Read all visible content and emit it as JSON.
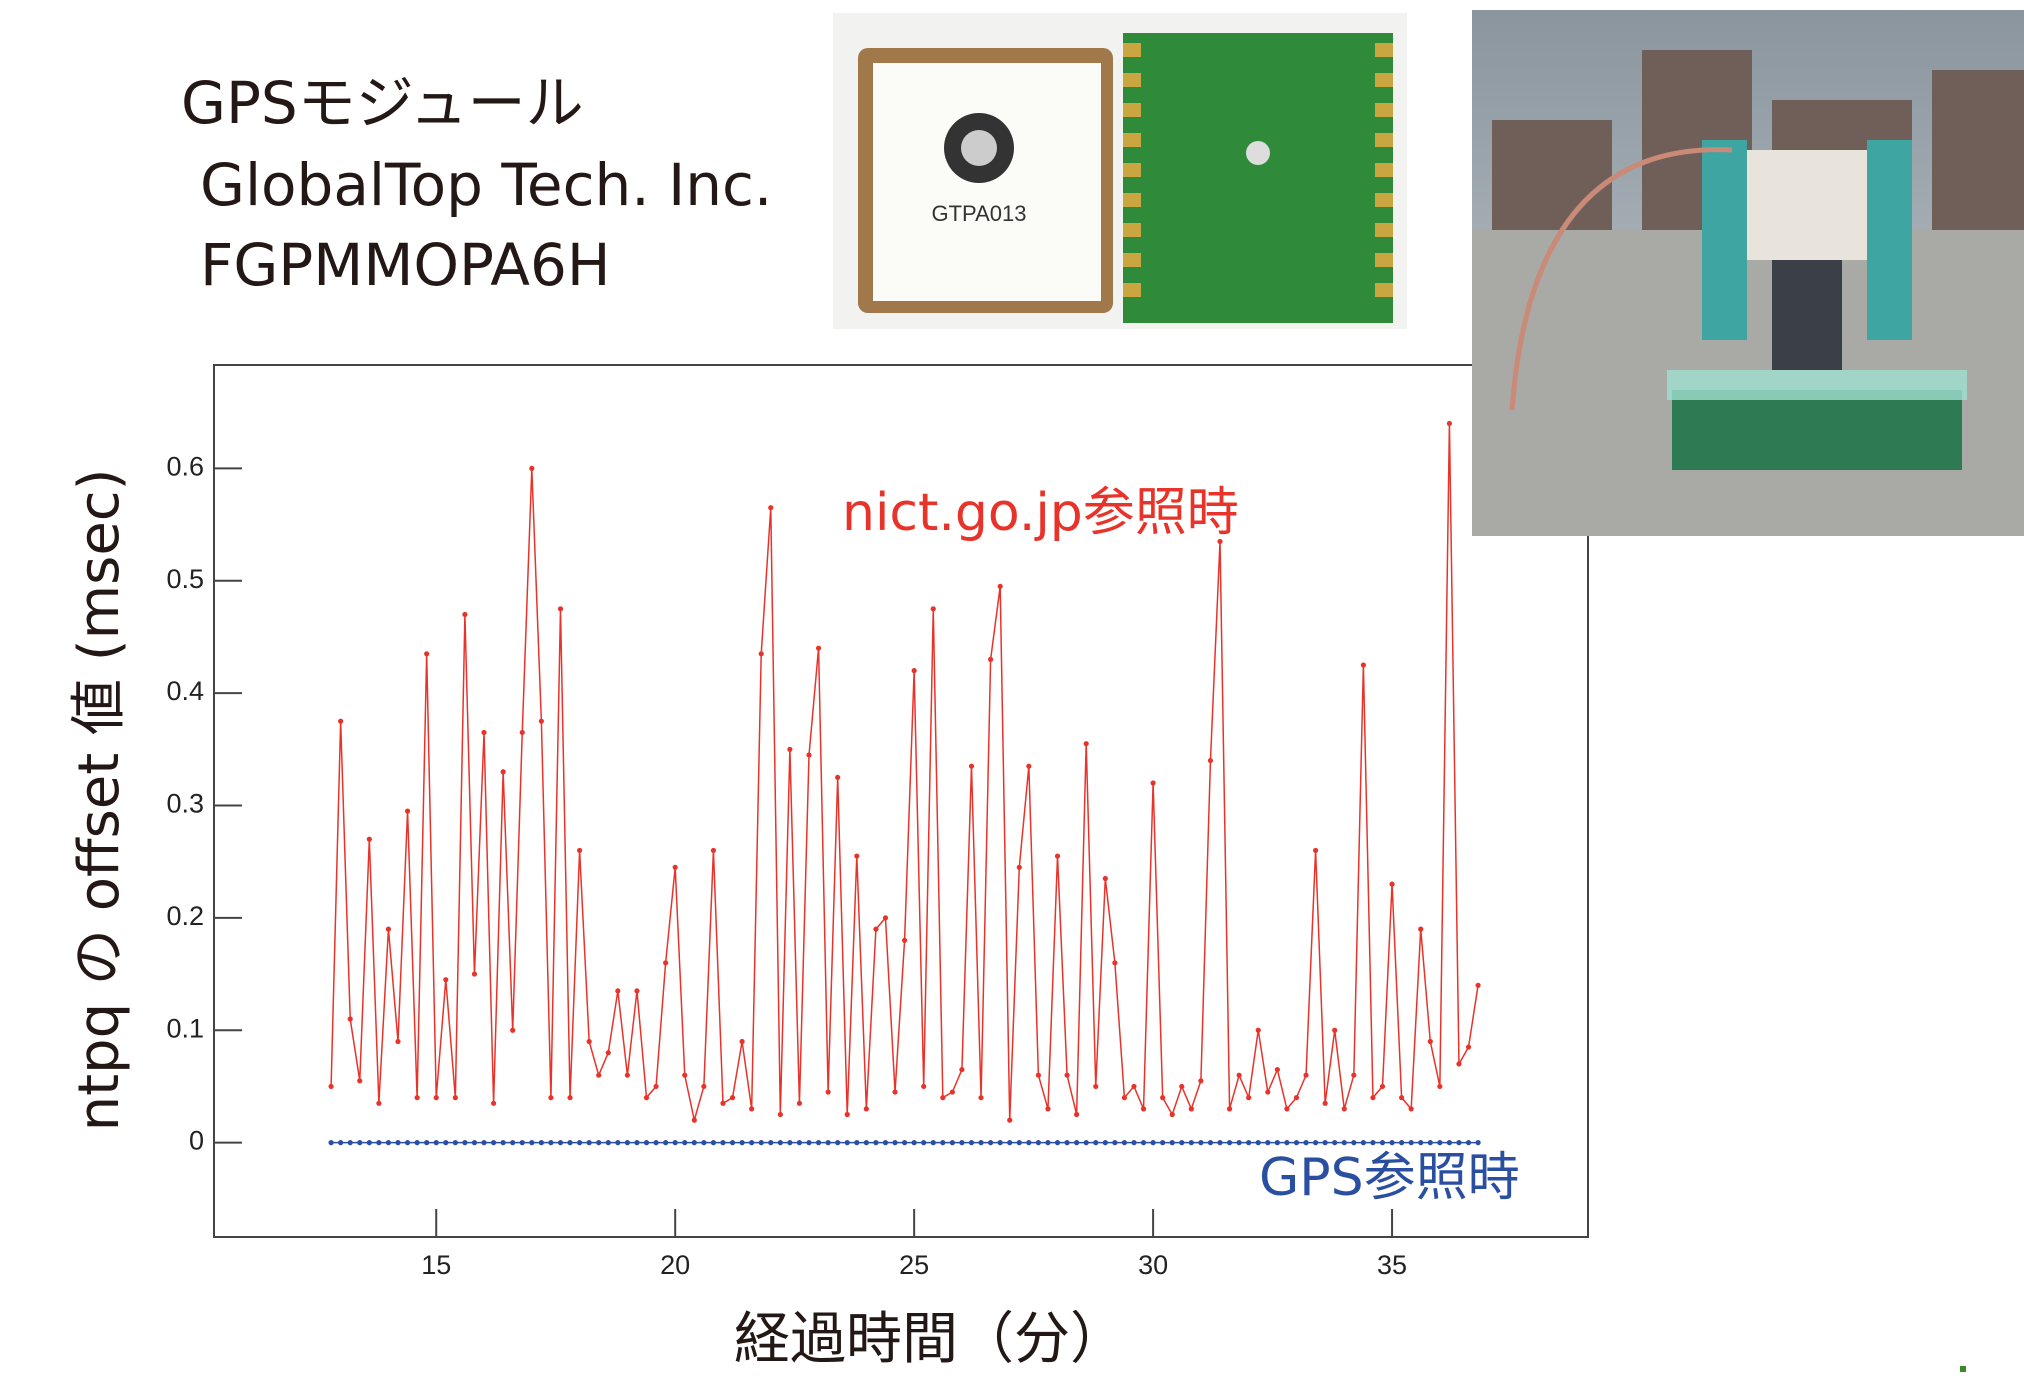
{
  "module_caption": [
    "GPSモジュール",
    "GlobalTop Tech. Inc.",
    "FGPMMOPA6H"
  ],
  "module_photo_label": "GTPA013",
  "chart_data": {
    "type": "line",
    "x_label": "経過時間（分）",
    "y_label": "ntpq の offset 値 (msec)",
    "x": [
      12.8,
      13,
      13.2,
      13.4,
      13.6,
      13.8,
      14,
      14.2,
      14.4,
      14.6,
      14.8,
      15,
      15.2,
      15.4,
      15.6,
      15.8,
      16,
      16.2,
      16.4,
      16.6,
      16.8,
      17,
      17.2,
      17.4,
      17.6,
      17.8,
      18,
      18.2,
      18.4,
      18.6,
      18.8,
      19,
      19.2,
      19.4,
      19.6,
      19.8,
      20,
      20.2,
      20.4,
      20.6,
      20.8,
      21,
      21.2,
      21.4,
      21.6,
      21.8,
      22,
      22.2,
      22.4,
      22.6,
      22.8,
      23,
      23.2,
      23.4,
      23.6,
      23.8,
      24,
      24.2,
      24.4,
      24.6,
      24.8,
      25,
      25.2,
      25.4,
      25.6,
      25.8,
      26,
      26.2,
      26.4,
      26.6,
      26.8,
      27,
      27.2,
      27.4,
      27.6,
      27.8,
      28,
      28.2,
      28.4,
      28.6,
      28.8,
      29,
      29.2,
      29.4,
      29.6,
      29.8,
      30,
      30.2,
      30.4,
      30.6,
      30.8,
      31,
      31.2,
      31.4,
      31.6,
      31.8,
      32,
      32.2,
      32.4,
      32.6,
      32.8,
      33,
      33.2,
      33.4,
      33.6,
      33.8,
      34,
      34.2,
      34.4,
      34.6,
      34.8,
      35,
      35.2,
      35.4,
      35.6,
      35.8,
      36,
      36.2,
      36.4,
      36.6,
      36.8
    ],
    "series": [
      {
        "name": "nict.go.jp参照時",
        "color": "#e8332a",
        "values": [
          0.05,
          0.375,
          0.11,
          0.055,
          0.27,
          0.035,
          0.19,
          0.09,
          0.295,
          0.04,
          0.435,
          0.04,
          0.145,
          0.04,
          0.47,
          0.15,
          0.365,
          0.035,
          0.33,
          0.1,
          0.365,
          0.6,
          0.375,
          0.04,
          0.475,
          0.04,
          0.26,
          0.09,
          0.06,
          0.08,
          0.135,
          0.06,
          0.135,
          0.04,
          0.05,
          0.16,
          0.245,
          0.06,
          0.02,
          0.05,
          0.26,
          0.035,
          0.04,
          0.09,
          0.03,
          0.435,
          0.565,
          0.025,
          0.35,
          0.035,
          0.345,
          0.44,
          0.045,
          0.325,
          0.025,
          0.255,
          0.03,
          0.19,
          0.2,
          0.045,
          0.18,
          0.42,
          0.05,
          0.475,
          0.04,
          0.045,
          0.065,
          0.335,
          0.04,
          0.43,
          0.495,
          0.02,
          0.245,
          0.335,
          0.06,
          0.03,
          0.255,
          0.06,
          0.025,
          0.355,
          0.05,
          0.235,
          0.16,
          0.04,
          0.05,
          0.03,
          0.32,
          0.04,
          0.025,
          0.05,
          0.03,
          0.055,
          0.34,
          0.535,
          0.03,
          0.06,
          0.04,
          0.1,
          0.045,
          0.065,
          0.03,
          0.04,
          0.06,
          0.26,
          0.035,
          0.1,
          0.03,
          0.06,
          0.425,
          0.04,
          0.05,
          0.23,
          0.04,
          0.03,
          0.19,
          0.09,
          0.05,
          0.64,
          0.07,
          0.085,
          0.14
        ]
      },
      {
        "name": "GPS参照時",
        "color": "#2b4fa0",
        "values": [
          0,
          0,
          0,
          0,
          0,
          0,
          0,
          0,
          0,
          0,
          0,
          0,
          0,
          0,
          0,
          0,
          0,
          0,
          0,
          0,
          0,
          0,
          0,
          0,
          0,
          0,
          0,
          0,
          0,
          0,
          0,
          0,
          0,
          0,
          0,
          0,
          0,
          0,
          0,
          0,
          0,
          0,
          0,
          0,
          0,
          0,
          0,
          0,
          0,
          0,
          0,
          0,
          0,
          0,
          0,
          0,
          0,
          0,
          0,
          0,
          0,
          0,
          0,
          0,
          0,
          0,
          0,
          0,
          0,
          0,
          0,
          0,
          0,
          0,
          0,
          0,
          0,
          0,
          0,
          0,
          0,
          0,
          0,
          0,
          0,
          0,
          0,
          0,
          0,
          0,
          0,
          0,
          0,
          0,
          0,
          0,
          0,
          0,
          0,
          0,
          0,
          0,
          0,
          0,
          0,
          0,
          0,
          0,
          0,
          0,
          0,
          0,
          0,
          0,
          0,
          0,
          0,
          0,
          0,
          0,
          0
        ]
      }
    ],
    "xlim": [
      10.35,
      39.1
    ],
    "ylim": [
      -0.084,
      0.692
    ],
    "xticks": [
      15,
      20,
      25,
      30,
      35
    ],
    "yticks": [
      0,
      0.1,
      0.2,
      0.3,
      0.4,
      0.5,
      0.6
    ]
  }
}
